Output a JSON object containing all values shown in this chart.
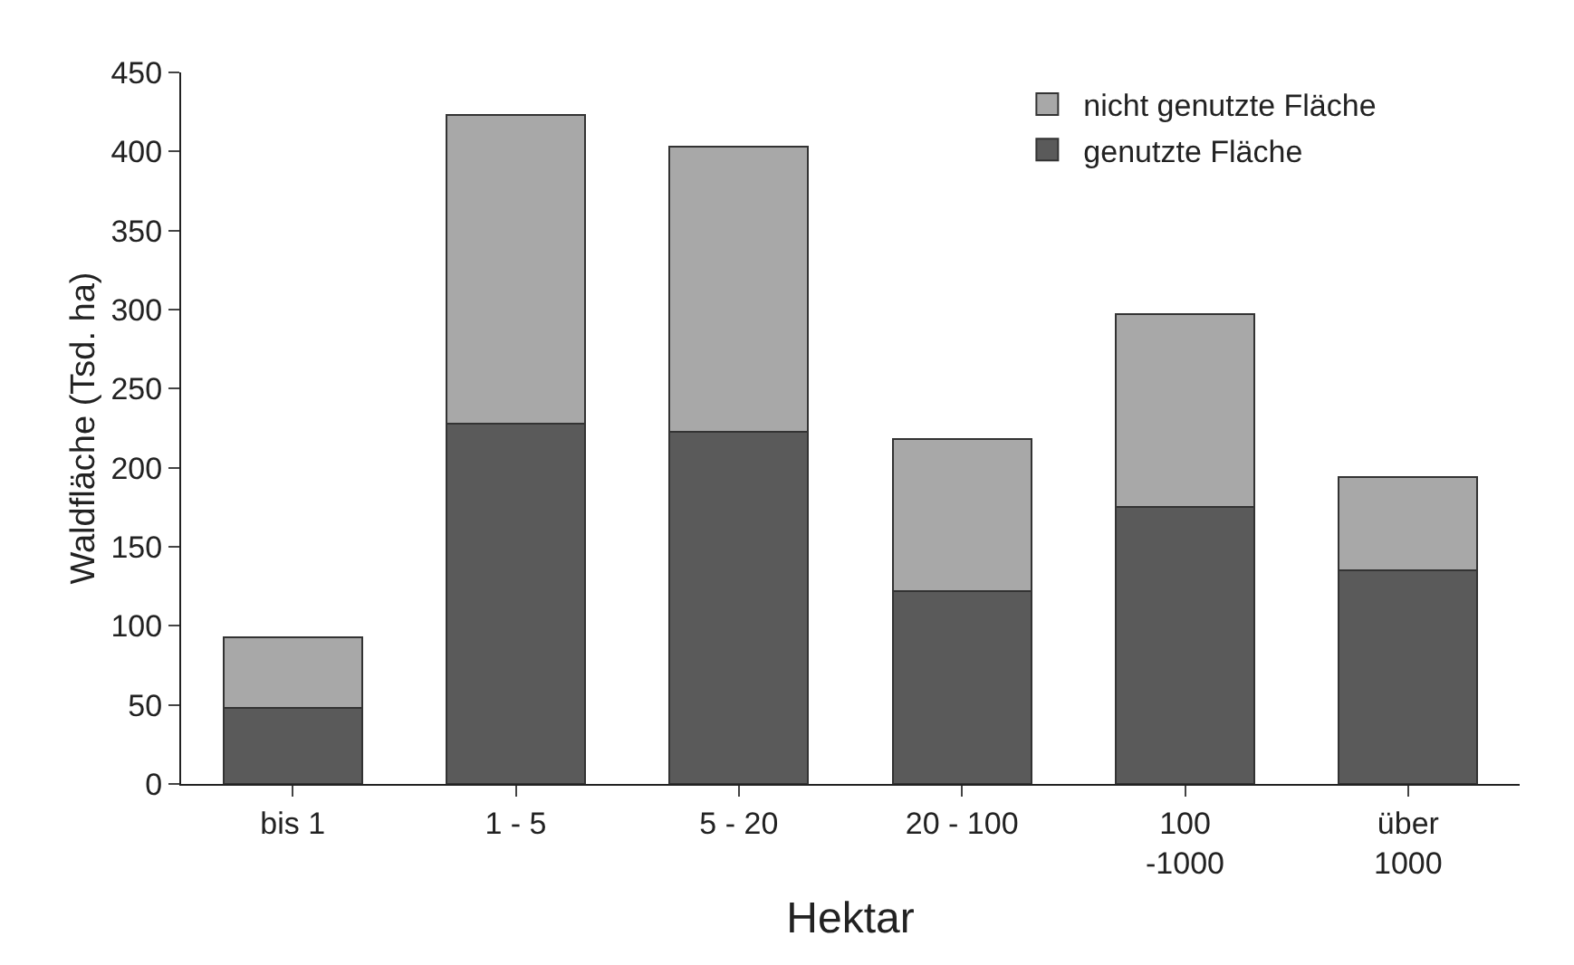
{
  "chart_data": {
    "type": "bar",
    "stacked": true,
    "xlabel": "Hektar",
    "ylabel": "Waldfläche (Tsd. ha)",
    "categories": [
      "bis 1",
      "1 - 5",
      "5 - 20",
      "20 - 100",
      "100\n-1000",
      "über\n1000"
    ],
    "series": [
      {
        "name": "genutzte Fläche",
        "color": "#5a5a5a",
        "values": [
          48,
          228,
          223,
          122,
          175,
          135
        ]
      },
      {
        "name": "nicht genutzte Fläche",
        "color": "#a8a8a8",
        "values": [
          45,
          195,
          180,
          96,
          122,
          59
        ]
      }
    ],
    "ylim": [
      0,
      450
    ],
    "yticks": [
      0,
      50,
      100,
      150,
      200,
      250,
      300,
      350,
      400,
      450
    ],
    "grid": false,
    "legend": "top right"
  }
}
